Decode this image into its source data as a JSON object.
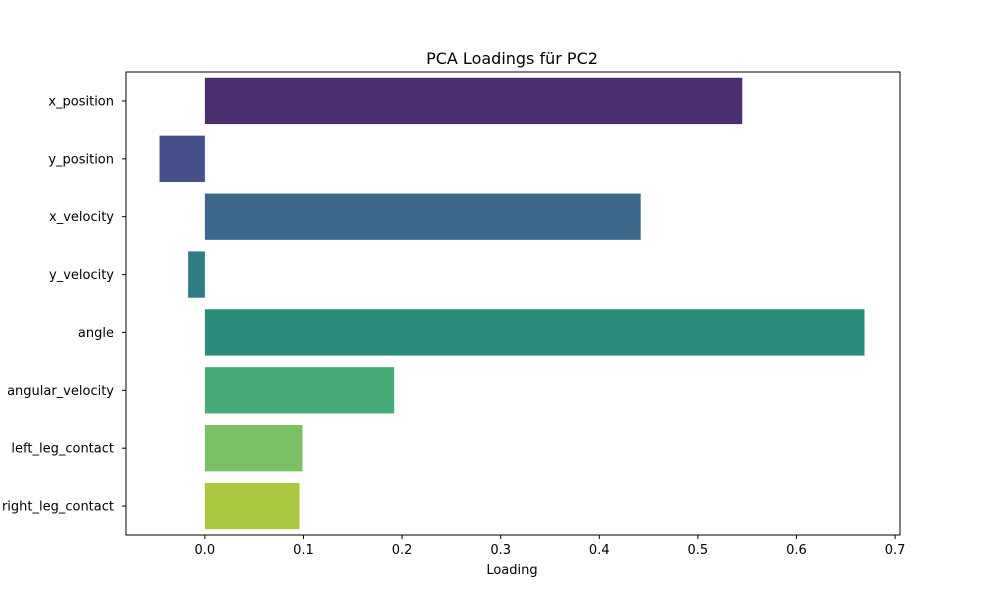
{
  "chart_data": {
    "type": "bar",
    "orientation": "horizontal",
    "title": "PCA Loadings für PC2",
    "xlabel": "Loading",
    "ylabel": "",
    "categories": [
      "x_position",
      "y_position",
      "x_velocity",
      "y_velocity",
      "angle",
      "angular_velocity",
      "left_leg_contact",
      "right_leg_contact"
    ],
    "values": [
      0.545,
      -0.046,
      0.442,
      -0.017,
      0.669,
      0.192,
      0.099,
      0.096
    ],
    "xlim": [
      -0.08,
      0.705
    ],
    "xticks": [
      0.0,
      0.1,
      0.2,
      0.3,
      0.4,
      0.5,
      0.6,
      0.7
    ],
    "xtick_labels": [
      "0.0",
      "0.1",
      "0.2",
      "0.3",
      "0.4",
      "0.5",
      "0.6",
      "0.7"
    ],
    "colors": [
      "#4b2e6d",
      "#454f89",
      "#3c668a",
      "#2f7b86",
      "#2c8c7b",
      "#46ab76",
      "#7ac064",
      "#aac83f"
    ],
    "grid": false,
    "legend": "none"
  }
}
